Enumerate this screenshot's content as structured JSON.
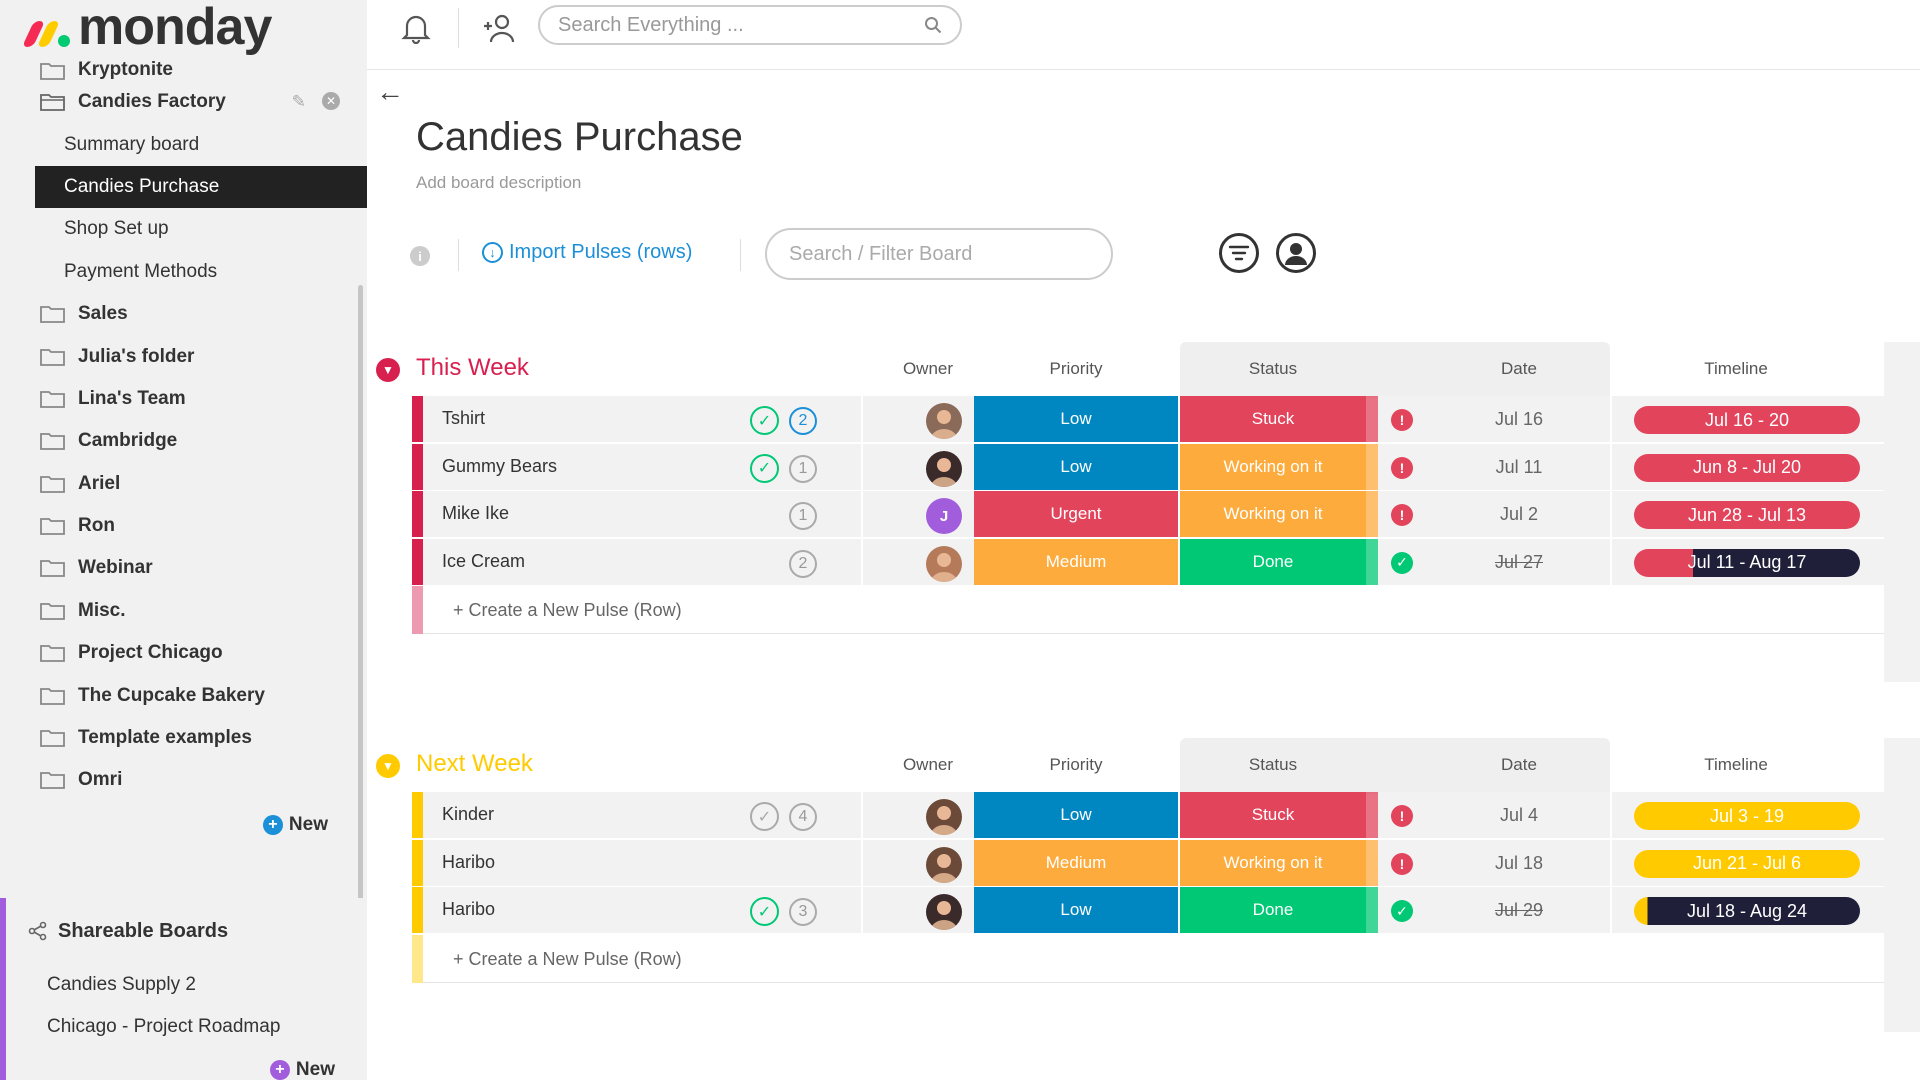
{
  "app": {
    "logo_text": "monday"
  },
  "sidebar": {
    "items": [
      {
        "type": "folder",
        "label": "Kryptonite"
      },
      {
        "type": "folder",
        "label": "Candies Factory",
        "open": true
      },
      {
        "type": "board",
        "label": "Summary board"
      },
      {
        "type": "board",
        "label": "Candies Purchase",
        "active": true
      },
      {
        "type": "board",
        "label": "Shop Set up"
      },
      {
        "type": "board",
        "label": "Payment Methods"
      },
      {
        "type": "folder",
        "label": "Sales"
      },
      {
        "type": "folder",
        "label": "Julia's folder"
      },
      {
        "type": "folder",
        "label": "Lina's Team"
      },
      {
        "type": "folder",
        "label": "Cambridge"
      },
      {
        "type": "folder",
        "label": "Ariel"
      },
      {
        "type": "folder",
        "label": "Ron"
      },
      {
        "type": "folder",
        "label": "Webinar"
      },
      {
        "type": "folder",
        "label": "Misc."
      },
      {
        "type": "folder",
        "label": "Project Chicago"
      },
      {
        "type": "folder",
        "label": "The Cupcake Bakery"
      },
      {
        "type": "folder",
        "label": "Template examples"
      },
      {
        "type": "folder",
        "label": "Omri"
      }
    ],
    "new_label": "New",
    "shareable": {
      "title": "Shareable Boards",
      "boards": [
        "Candies Supply 2",
        "Chicago - Project Roadmap"
      ],
      "new_label": "New"
    }
  },
  "topbar": {
    "search_placeholder": "Search Everything ..."
  },
  "board": {
    "title": "Candies Purchase",
    "description": "Add board description",
    "import_label": "Import Pulses (rows)",
    "filter_placeholder": "Search / Filter Board",
    "columns": {
      "owner": "Owner",
      "priority": "Priority",
      "status": "Status",
      "date": "Date",
      "timeline": "Timeline"
    },
    "create_label": "+ Create a New Pulse (Row)"
  },
  "colors": {
    "low": "#0086c0",
    "medium": "#fdab3d",
    "urgent": "#e2445c",
    "stuck": "#e2445c",
    "working": "#fdab3d",
    "done": "#00c875",
    "this_week": "#e2445c",
    "next_week": "#ffcb00",
    "dark": "#1f1f3a"
  },
  "groups": [
    {
      "title": "This Week",
      "color": "#d8204f",
      "rows": [
        {
          "name": "Tshirt",
          "check": "green",
          "updates": "2",
          "updates_active": true,
          "owner": "photo",
          "owner_color": "#8a6a58",
          "priority": "Low",
          "priority_color": "#0086c0",
          "status": "Stuck",
          "status_color": "#e2445c",
          "alert": "red",
          "date": "Jul 16",
          "date_done": false,
          "timeline": "Jul 16 - 20",
          "tl_progress": 1,
          "tl_color": "#e2445c"
        },
        {
          "name": "Gummy Bears",
          "check": "green",
          "updates": "1",
          "updates_active": false,
          "owner": "photo",
          "owner_color": "#3a2a2a",
          "priority": "Low",
          "priority_color": "#0086c0",
          "status": "Working on it",
          "status_color": "#fdab3d",
          "alert": "red",
          "date": "Jul 11",
          "date_done": false,
          "timeline": "Jun 8 - Jul 20",
          "tl_progress": 1,
          "tl_color": "#e2445c"
        },
        {
          "name": "Mike Ike",
          "check": "",
          "updates": "1",
          "updates_active": false,
          "owner": "J",
          "owner_color": "#a25ddc",
          "priority": "Urgent",
          "priority_color": "#e2445c",
          "status": "Working on it",
          "status_color": "#fdab3d",
          "alert": "red",
          "date": "Jul 2",
          "date_done": false,
          "timeline": "Jun 28 - Jul 13",
          "tl_progress": 1,
          "tl_color": "#e2445c"
        },
        {
          "name": "Ice Cream",
          "check": "",
          "updates": "2",
          "updates_active": false,
          "owner": "photo",
          "owner_color": "#b57a5a",
          "priority": "Medium",
          "priority_color": "#fdab3d",
          "status": "Done",
          "status_color": "#00c875",
          "alert": "green",
          "date": "Jul 27",
          "date_done": true,
          "timeline": "Jul 11 - Aug 17",
          "tl_progress": 0.26,
          "tl_color": "#e2445c"
        }
      ]
    },
    {
      "title": "Next Week",
      "color": "#ffcb00",
      "rows": [
        {
          "name": "Kinder",
          "check": "grey",
          "updates": "4",
          "updates_active": false,
          "owner": "photo",
          "owner_color": "#6b4a3a",
          "priority": "Low",
          "priority_color": "#0086c0",
          "status": "Stuck",
          "status_color": "#e2445c",
          "alert": "red",
          "date": "Jul 4",
          "date_done": false,
          "timeline": "Jul 3 - 19",
          "tl_progress": 1,
          "tl_color": "#ffcb00"
        },
        {
          "name": "Haribo",
          "check": "",
          "updates": "",
          "updates_active": false,
          "owner": "photo",
          "owner_color": "#6b4a3a",
          "priority": "Medium",
          "priority_color": "#fdab3d",
          "status": "Working on it",
          "status_color": "#fdab3d",
          "alert": "red",
          "date": "Jul 18",
          "date_done": false,
          "timeline": "Jun 21 - Jul 6",
          "tl_progress": 1,
          "tl_color": "#ffcb00"
        },
        {
          "name": "Haribo",
          "check": "green",
          "updates": "3",
          "updates_active": false,
          "owner": "photo",
          "owner_color": "#3a2a2a",
          "priority": "Low",
          "priority_color": "#0086c0",
          "status": "Done",
          "status_color": "#00c875",
          "alert": "green",
          "date": "Jul 29",
          "date_done": true,
          "timeline": "Jul 18 - Aug 24",
          "tl_progress": 0.06,
          "tl_color": "#ffcb00"
        }
      ]
    }
  ]
}
